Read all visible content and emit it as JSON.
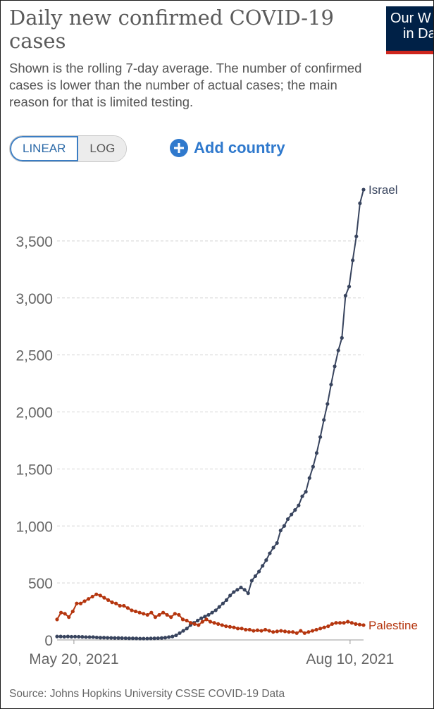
{
  "header": {
    "title": "Daily new confirmed COVID-19 cases",
    "subtitle": "Shown is the rolling 7-day average. The number of confirmed cases is lower than the number of actual cases; the main reason for that is limited testing.",
    "logo_line1": "Our W",
    "logo_line2": "in Da",
    "logo_color": "#002147",
    "logo_accent": "#ce261e"
  },
  "controls": {
    "linear_label": "LINEAR",
    "log_label": "LOG",
    "add_country_label": "Add country",
    "accent": "#2f79cd"
  },
  "source": "Source: Johns Hopkins University CSSE COVID-19 Data",
  "chart_data": {
    "type": "line",
    "xlabel": "",
    "ylabel": "",
    "x_start": "2021-05-15",
    "x_end": "2021-08-14",
    "x_tick_labels": [
      {
        "date": "2021-05-20",
        "label": "May 20, 2021"
      },
      {
        "date": "2021-08-10",
        "label": "Aug 10, 2021"
      }
    ],
    "ylim": [
      0,
      4000
    ],
    "y_ticks": [
      0,
      500,
      1000,
      1500,
      2000,
      2500,
      3000,
      3500
    ],
    "y_tick_labels": [
      "0",
      "500",
      "1,000",
      "1,500",
      "2,000",
      "2,500",
      "3,000",
      "3,500"
    ],
    "grid": true,
    "series": [
      {
        "name": "Israel",
        "color": "#38445e",
        "values": [
          30,
          30,
          28,
          30,
          28,
          29,
          28,
          27,
          25,
          25,
          25,
          22,
          20,
          20,
          19,
          18,
          17,
          17,
          16,
          15,
          14,
          14,
          13,
          12,
          12,
          12,
          13,
          14,
          15,
          17,
          20,
          25,
          30,
          40,
          60,
          80,
          100,
          130,
          150,
          170,
          190,
          205,
          220,
          240,
          260,
          290,
          320,
          350,
          390,
          420,
          440,
          460,
          440,
          410,
          520,
          560,
          600,
          650,
          700,
          760,
          810,
          850,
          960,
          1000,
          1060,
          1100,
          1140,
          1180,
          1260,
          1300,
          1420,
          1520,
          1640,
          1780,
          1930,
          2070,
          2240,
          2400,
          2540,
          2650,
          3020,
          3100,
          3330,
          3540,
          3830,
          3950
        ]
      },
      {
        "name": "Palestine",
        "color": "#b5360f",
        "values": [
          180,
          240,
          230,
          200,
          250,
          320,
          320,
          340,
          360,
          380,
          400,
          390,
          370,
          350,
          330,
          320,
          300,
          300,
          280,
          260,
          250,
          240,
          230,
          220,
          240,
          200,
          220,
          240,
          220,
          200,
          230,
          220,
          180,
          170,
          150,
          140,
          130,
          160,
          180,
          160,
          150,
          140,
          130,
          120,
          115,
          110,
          100,
          100,
          90,
          90,
          80,
          85,
          80,
          90,
          80,
          70,
          75,
          80,
          75,
          70,
          70,
          60,
          80,
          60,
          70,
          80,
          90,
          100,
          110,
          120,
          140,
          150,
          150,
          150,
          160,
          150,
          140,
          135,
          130
        ]
      }
    ]
  }
}
